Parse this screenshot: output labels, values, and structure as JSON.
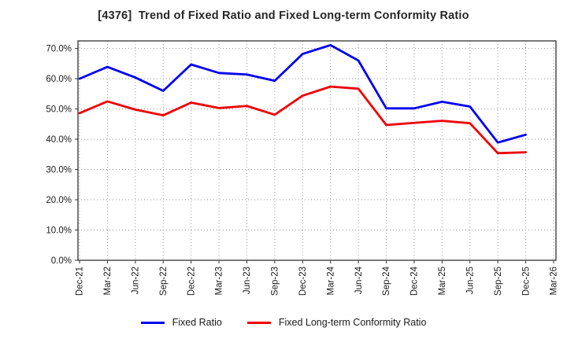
{
  "title": "[4376]  Trend of Fixed Ratio and Fixed Long-term Conformity Ratio",
  "chart_data": {
    "type": "line",
    "categories": [
      "Dec-21",
      "Mar-22",
      "Jun-22",
      "Sep-22",
      "Dec-22",
      "Mar-23",
      "Jun-23",
      "Sep-23",
      "Dec-23",
      "Mar-24",
      "Jun-24",
      "Sep-24",
      "Dec-24",
      "Mar-25",
      "Jun-25",
      "Sep-25",
      "Dec-25",
      "Mar-26"
    ],
    "series": [
      {
        "name": "Fixed Ratio",
        "color": "#0000EE",
        "values": [
          60.0,
          63.9,
          60.4,
          56.0,
          64.7,
          61.9,
          61.4,
          59.3,
          68.2,
          71.1,
          66.0,
          50.2,
          50.2,
          52.4,
          50.8,
          38.9,
          41.5,
          null
        ]
      },
      {
        "name": "Fixed Long-term Conformity Ratio",
        "color": "#EE0000",
        "values": [
          48.6,
          52.5,
          49.8,
          47.9,
          52.1,
          50.3,
          51.0,
          48.1,
          54.4,
          57.4,
          56.7,
          44.7,
          45.4,
          46.1,
          45.3,
          35.4,
          35.7,
          null
        ]
      }
    ],
    "ylim": [
      0,
      72.5
    ],
    "ytick_labels": [
      "0.0%",
      "10.0%",
      "20.0%",
      "30.0%",
      "40.0%",
      "50.0%",
      "60.0%",
      "70.0%"
    ],
    "ytick_values": [
      0,
      10,
      20,
      30,
      40,
      50,
      60,
      70
    ],
    "grid": "dotted",
    "legend_position": "bottom"
  },
  "colors": {
    "grid": "#999999",
    "frame": "#333333",
    "tick_text": "#1a1a1a"
  }
}
